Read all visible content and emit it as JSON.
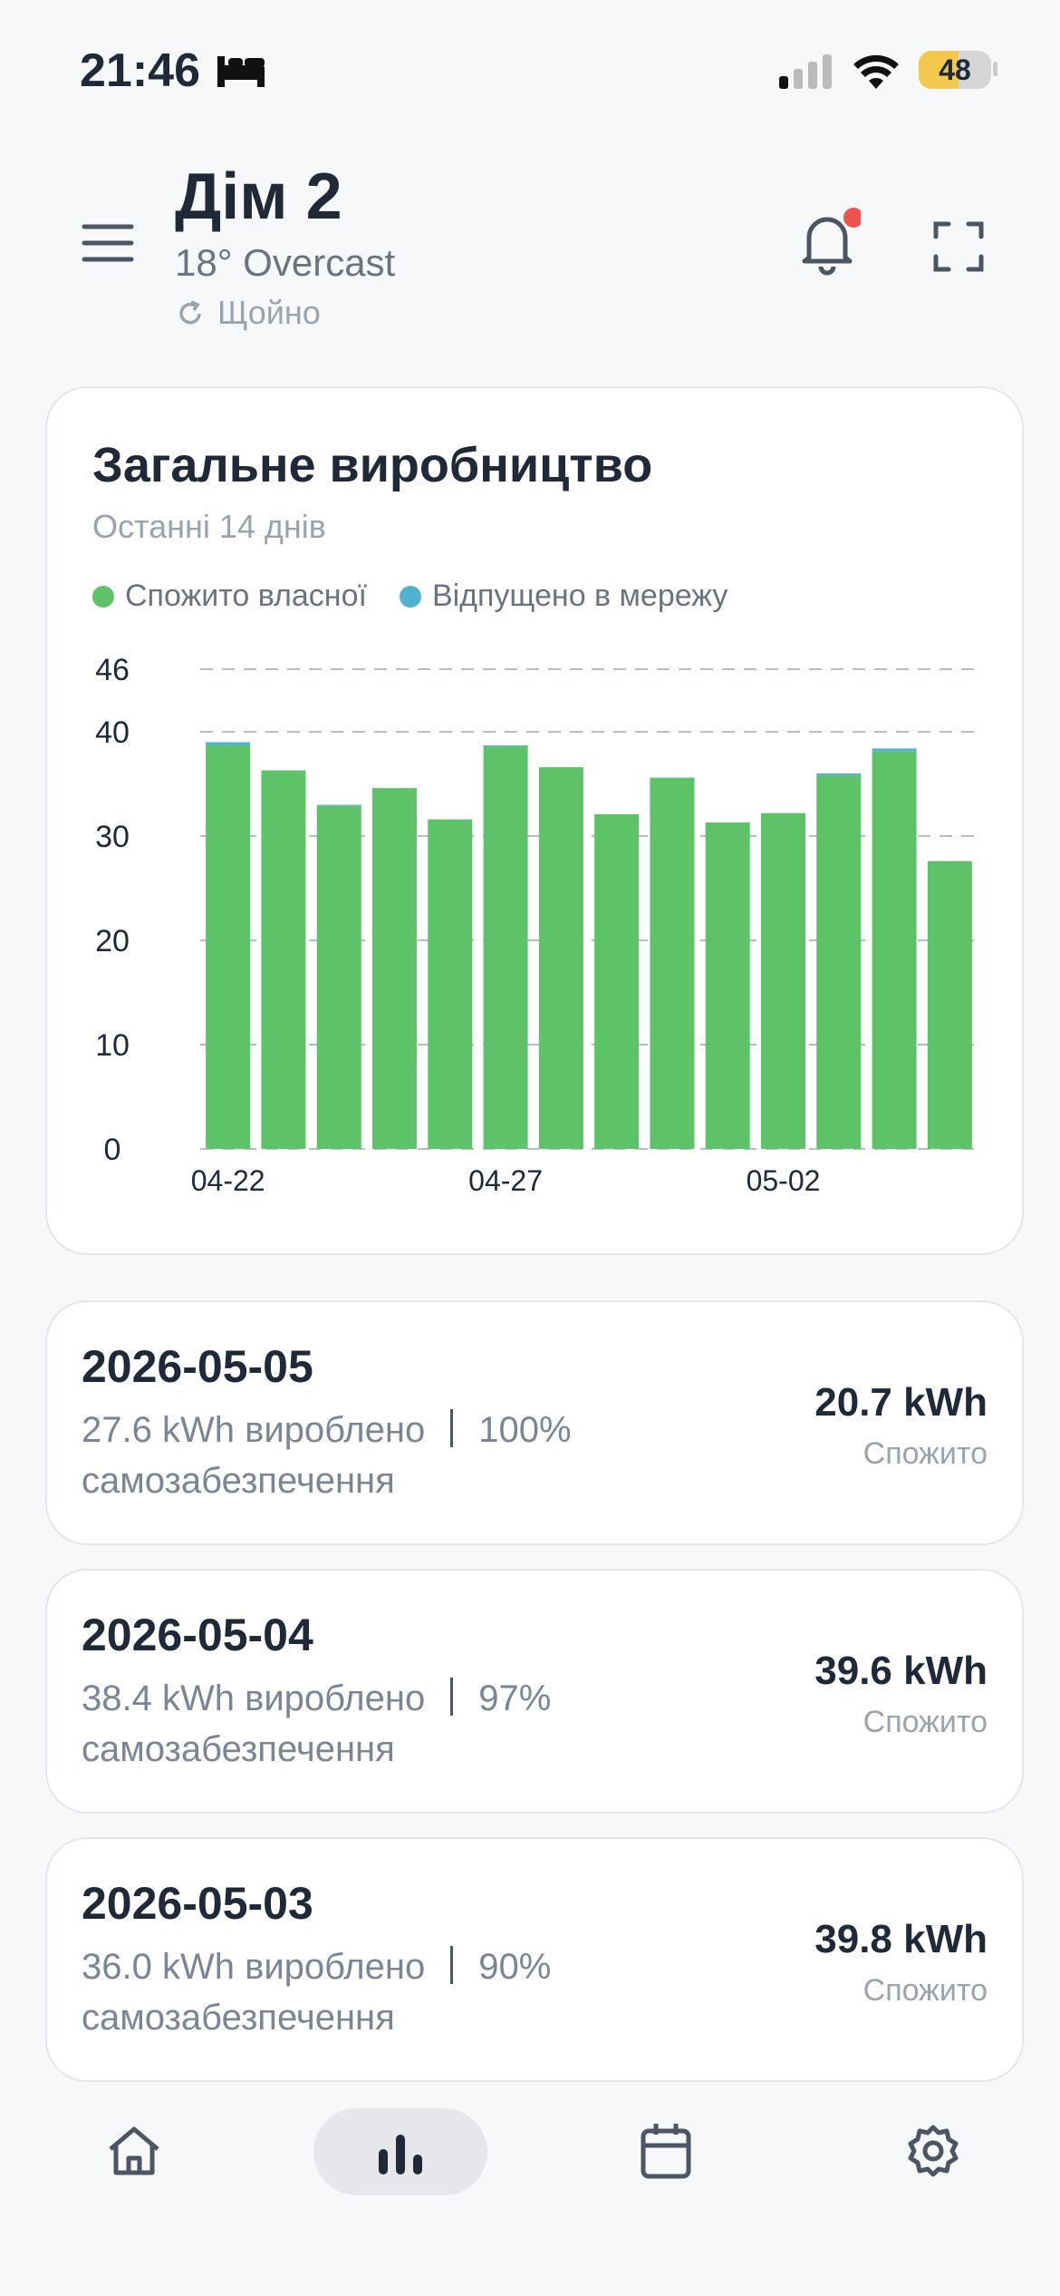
{
  "status_bar": {
    "time": "21:46",
    "battery": "48"
  },
  "header": {
    "title": "Дім 2",
    "weather": "18° Overcast",
    "updated": "Щойно"
  },
  "chart_data": {
    "type": "bar",
    "stacked": true,
    "title": "Загальне виробництво",
    "subtitle": "Останні 14 днів",
    "categories": [
      "04-22",
      null,
      null,
      null,
      null,
      "04-27",
      null,
      null,
      null,
      null,
      "05-02",
      null,
      null,
      null
    ],
    "series": [
      {
        "name": "Спожито власної",
        "color": "#5ec269",
        "values": [
          38.7,
          36.3,
          32.9,
          34.6,
          31.6,
          38.6,
          36.6,
          32.1,
          35.6,
          31.3,
          32.2,
          35.8,
          38.1,
          27.6
        ]
      },
      {
        "name": "Відпущено в мережу",
        "color": "#4fb3d0",
        "values": [
          0.3,
          0,
          0.1,
          0,
          0,
          0.1,
          0,
          0,
          0,
          0,
          0,
          0.2,
          0.3,
          0
        ]
      }
    ],
    "ylim": [
      0,
      46
    ],
    "yticks": [
      0,
      10,
      20,
      30,
      40,
      46
    ],
    "grid": true
  },
  "days": [
    {
      "date": "2026-05-05",
      "produced": "27.6 kWh вироблено",
      "percent": "100%",
      "percent_label": "самозабезпечення",
      "consumed": "20.7 kWh",
      "consumed_label": "Спожито"
    },
    {
      "date": "2026-05-04",
      "produced": "38.4 kWh вироблено",
      "percent": "97%",
      "percent_label": "самозабезпечення",
      "consumed": "39.6 kWh",
      "consumed_label": "Спожито"
    },
    {
      "date": "2026-05-03",
      "produced": "36.0 kWh вироблено",
      "percent": "90%",
      "percent_label": "самозабезпечення",
      "consumed": "39.8 kWh",
      "consumed_label": "Спожито"
    }
  ]
}
